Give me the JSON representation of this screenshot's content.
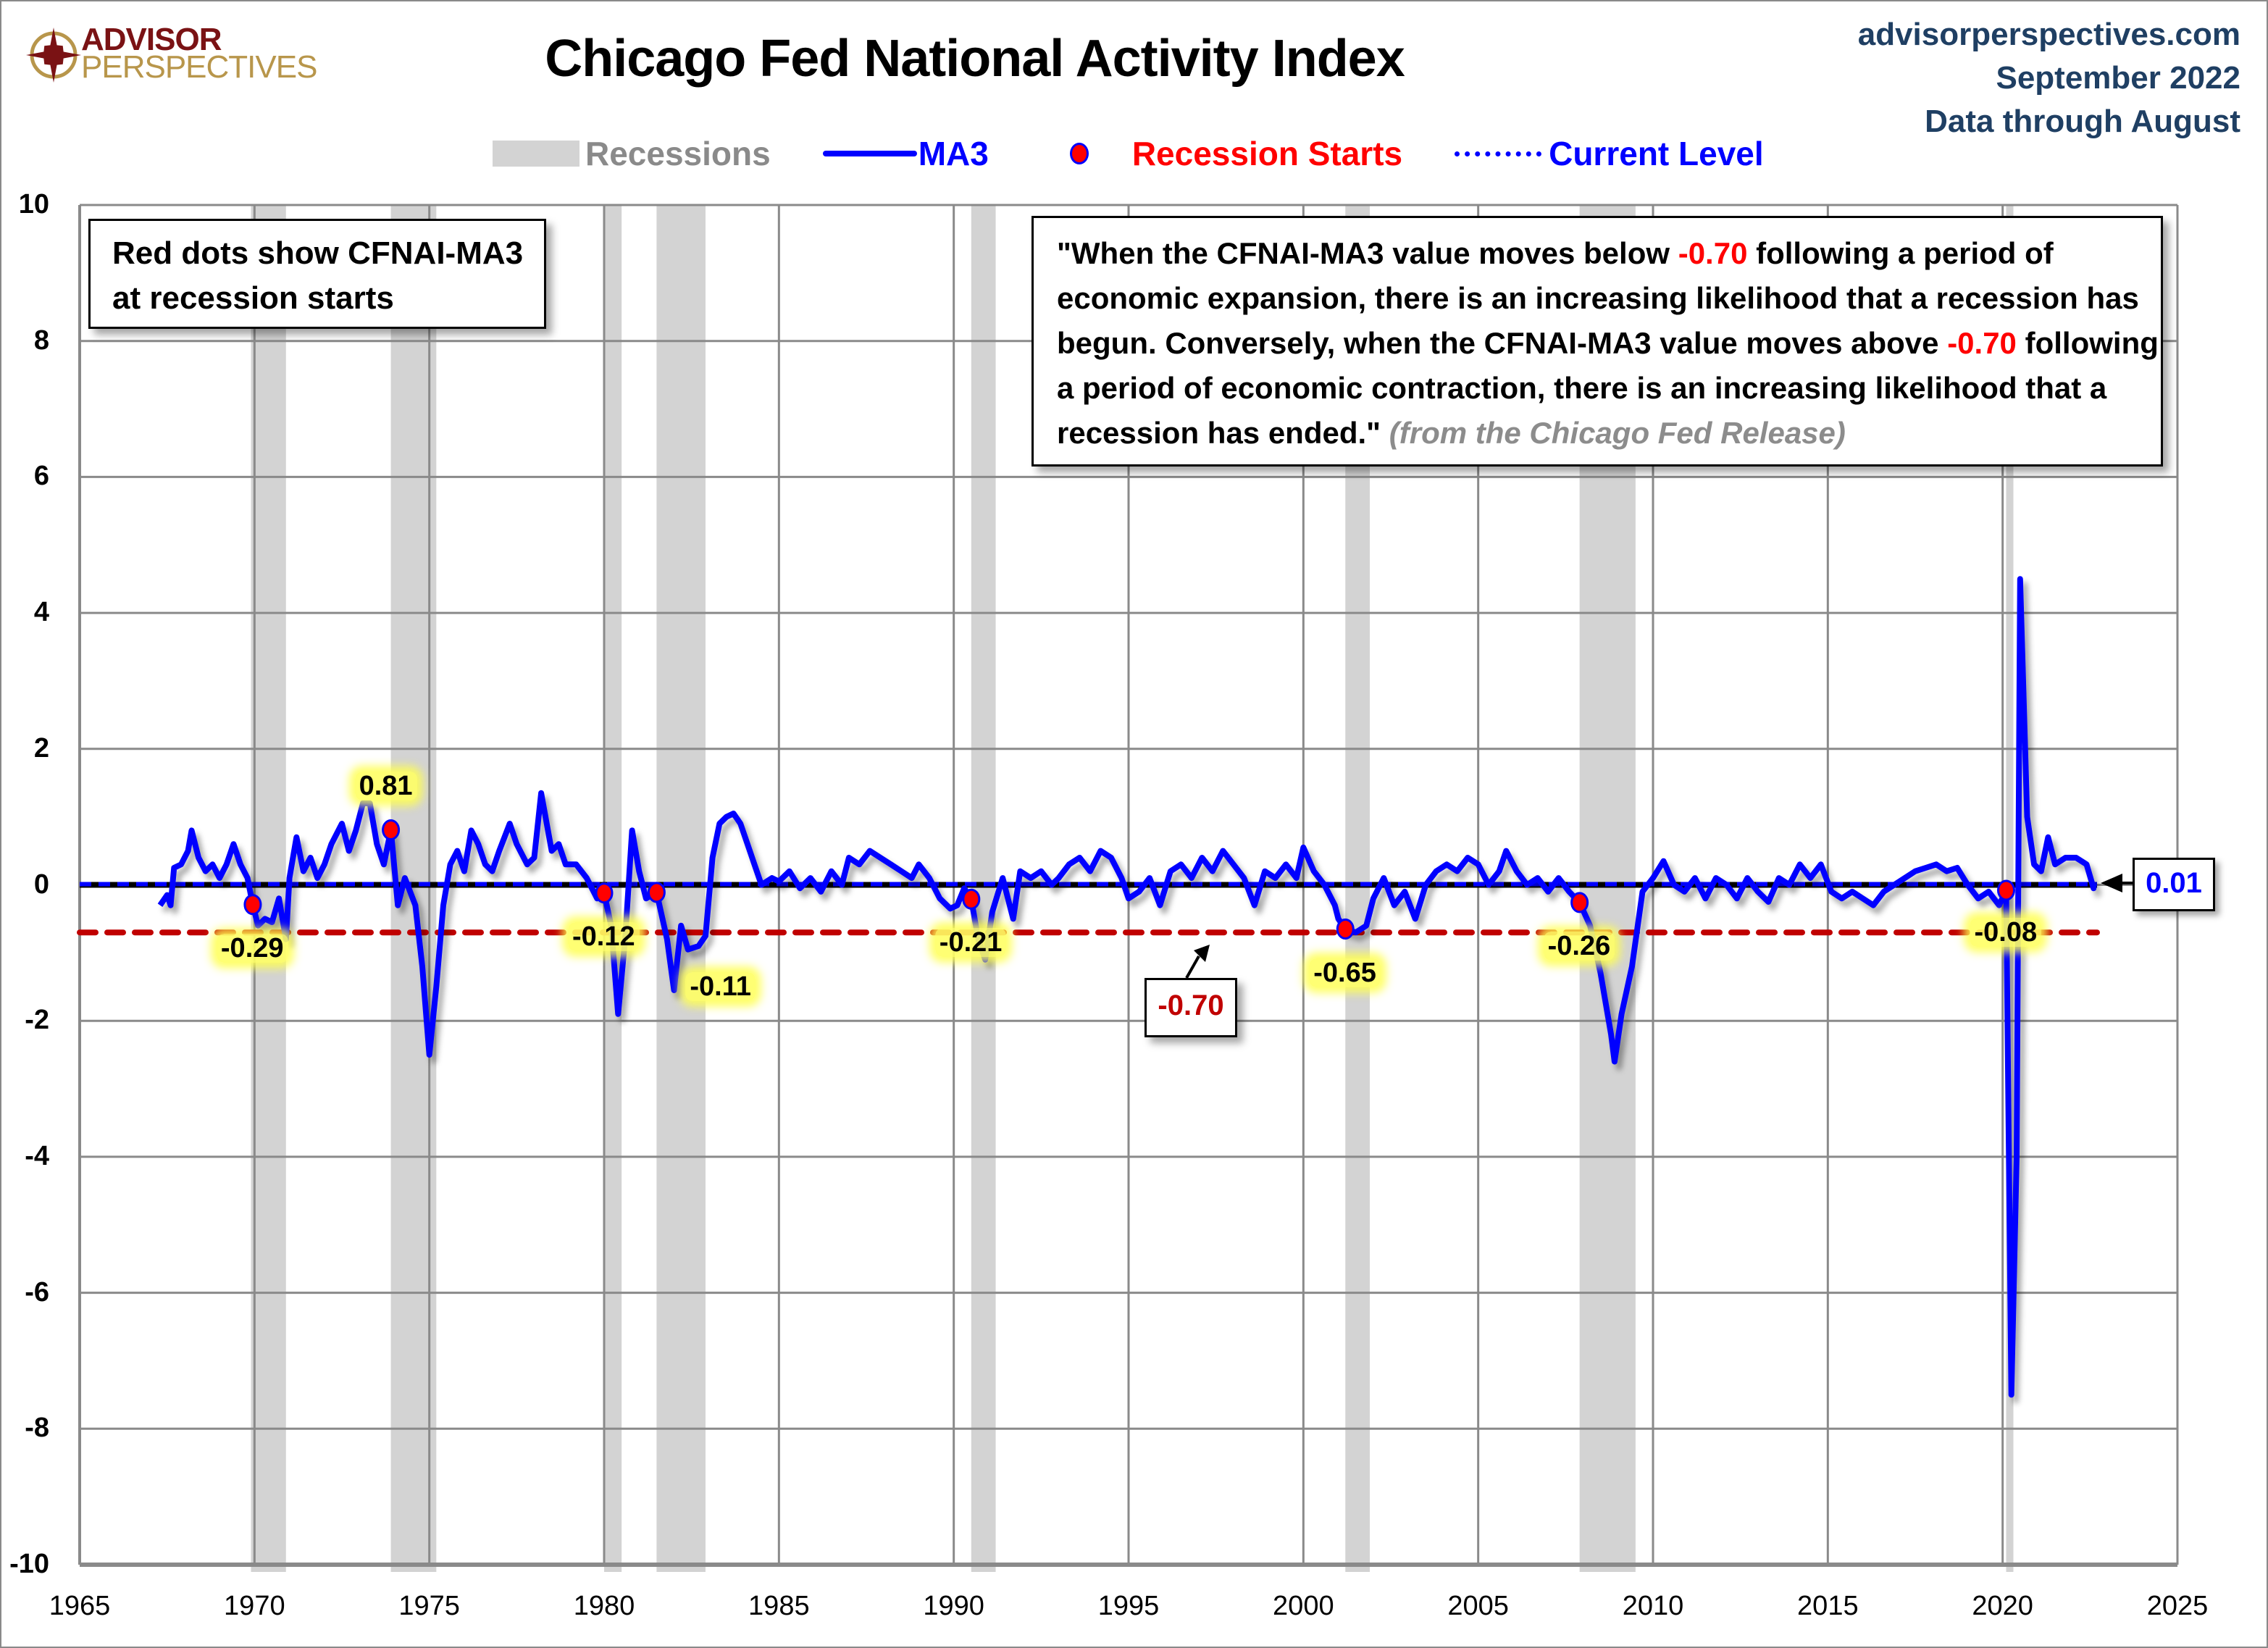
{
  "brand": {
    "logo_top": "ADVISOR",
    "logo_bottom": "PERSPECTIVES",
    "site": "advisorperspectives.com",
    "date": "September 2022",
    "data_note": "Data through August"
  },
  "legend": {
    "recessions": "Recessions",
    "ma3": "MA3",
    "recession_starts": "Recession Starts",
    "current_level": "Current Level"
  },
  "annotations": {
    "left_box_line1": "Red dots show CFNAI-MA3",
    "left_box_line2": "at recession starts",
    "quote_part1": "\"When the CFNAI-MA3 value moves below ",
    "quote_threshold1": "-0.70",
    "quote_part2": " following a period of economic expansion, there is an increasing likelihood that a recession has begun. Conversely, when the CFNAI-MA3 value moves above ",
    "quote_threshold2": "-0.70",
    "quote_part3": " following a period of economic contraction, there is an increasing likelihood that a recession has ended.\" ",
    "quote_source": "(from the Chicago Fed Release)",
    "threshold_box": "-0.70",
    "current_box": "0.01"
  },
  "colors": {
    "ma3": "#0000ff",
    "recession_dot": "#ff0000",
    "threshold_line": "#c00000",
    "recession_band": "#d3d3d3",
    "current_level": "#0000ff",
    "title_text": "#000000",
    "header_text": "#1f3f63"
  },
  "chart_data": {
    "type": "line",
    "title": "Chicago Fed National Activity Index",
    "xlabel": "",
    "ylabel": "",
    "xlim": [
      1965,
      2025
    ],
    "ylim": [
      -10,
      10
    ],
    "x_ticks": [
      "1965",
      "1970",
      "1975",
      "1980",
      "1985",
      "1990",
      "1995",
      "2000",
      "2005",
      "2010",
      "2015",
      "2020",
      "2025"
    ],
    "y_ticks": [
      "10",
      "8",
      "6",
      "4",
      "2",
      "0",
      "-2",
      "-4",
      "-6",
      "-8",
      "-10"
    ],
    "grid": true,
    "legend_position": "top-center",
    "recessions": [
      [
        1969.9,
        1970.9
      ],
      [
        1973.9,
        1975.2
      ],
      [
        1980.0,
        1980.5
      ],
      [
        1981.5,
        1982.9
      ],
      [
        1990.5,
        1991.2
      ],
      [
        2001.2,
        2001.9
      ],
      [
        2007.9,
        2009.5
      ],
      [
        2020.1,
        2020.3
      ]
    ],
    "threshold": {
      "value": -0.7,
      "label": "-0.70"
    },
    "current_level": {
      "value": 0.01,
      "label": "0.01"
    },
    "recession_starts": [
      {
        "x": 1969.95,
        "y": -0.29,
        "label": "-0.29"
      },
      {
        "x": 1973.9,
        "y": 0.81,
        "label": "0.81"
      },
      {
        "x": 1980.0,
        "y": -0.12,
        "label": "-0.12"
      },
      {
        "x": 1981.5,
        "y": -0.11,
        "label": "-0.11"
      },
      {
        "x": 1990.5,
        "y": -0.21,
        "label": "-0.21"
      },
      {
        "x": 2001.2,
        "y": -0.65,
        "label": "-0.65"
      },
      {
        "x": 2007.9,
        "y": -0.26,
        "label": "-0.26"
      },
      {
        "x": 2020.1,
        "y": -0.08,
        "label": "-0.08"
      }
    ],
    "series": [
      {
        "name": "MA3",
        "points": [
          [
            1967.3,
            -0.3
          ],
          [
            1967.5,
            -0.15
          ],
          [
            1967.6,
            -0.3
          ],
          [
            1967.7,
            0.25
          ],
          [
            1967.9,
            0.3
          ],
          [
            1968.1,
            0.5
          ],
          [
            1968.2,
            0.8
          ],
          [
            1968.4,
            0.4
          ],
          [
            1968.6,
            0.2
          ],
          [
            1968.8,
            0.3
          ],
          [
            1969.0,
            0.1
          ],
          [
            1969.2,
            0.3
          ],
          [
            1969.4,
            0.6
          ],
          [
            1969.6,
            0.3
          ],
          [
            1969.8,
            0.1
          ],
          [
            1969.95,
            -0.29
          ],
          [
            1970.1,
            -0.6
          ],
          [
            1970.3,
            -0.5
          ],
          [
            1970.5,
            -0.55
          ],
          [
            1970.7,
            -0.2
          ],
          [
            1970.9,
            -0.8
          ],
          [
            1971.0,
            0.1
          ],
          [
            1971.2,
            0.7
          ],
          [
            1971.4,
            0.2
          ],
          [
            1971.6,
            0.4
          ],
          [
            1971.8,
            0.1
          ],
          [
            1972.0,
            0.3
          ],
          [
            1972.2,
            0.6
          ],
          [
            1972.5,
            0.9
          ],
          [
            1972.7,
            0.5
          ],
          [
            1972.9,
            0.8
          ],
          [
            1973.1,
            1.2
          ],
          [
            1973.3,
            1.2
          ],
          [
            1973.5,
            0.6
          ],
          [
            1973.7,
            0.3
          ],
          [
            1973.9,
            0.81
          ],
          [
            1974.1,
            -0.3
          ],
          [
            1974.3,
            0.1
          ],
          [
            1974.6,
            -0.3
          ],
          [
            1974.8,
            -1.2
          ],
          [
            1975.0,
            -2.5
          ],
          [
            1975.2,
            -1.5
          ],
          [
            1975.4,
            -0.3
          ],
          [
            1975.6,
            0.3
          ],
          [
            1975.8,
            0.5
          ],
          [
            1976.0,
            0.2
          ],
          [
            1976.2,
            0.8
          ],
          [
            1976.4,
            0.6
          ],
          [
            1976.6,
            0.3
          ],
          [
            1976.8,
            0.2
          ],
          [
            1977.0,
            0.5
          ],
          [
            1977.3,
            0.9
          ],
          [
            1977.5,
            0.6
          ],
          [
            1977.8,
            0.3
          ],
          [
            1978.0,
            0.4
          ],
          [
            1978.2,
            1.35
          ],
          [
            1978.5,
            0.5
          ],
          [
            1978.7,
            0.6
          ],
          [
            1978.9,
            0.3
          ],
          [
            1979.2,
            0.3
          ],
          [
            1979.5,
            0.1
          ],
          [
            1979.8,
            -0.2
          ],
          [
            1980.0,
            -0.12
          ],
          [
            1980.2,
            -0.6
          ],
          [
            1980.4,
            -1.9
          ],
          [
            1980.6,
            -0.8
          ],
          [
            1980.8,
            0.8
          ],
          [
            1981.0,
            0.2
          ],
          [
            1981.2,
            -0.2
          ],
          [
            1981.5,
            -0.11
          ],
          [
            1981.8,
            -0.8
          ],
          [
            1982.0,
            -1.55
          ],
          [
            1982.2,
            -0.6
          ],
          [
            1982.4,
            -0.95
          ],
          [
            1982.7,
            -0.9
          ],
          [
            1982.9,
            -0.75
          ],
          [
            1983.1,
            0.4
          ],
          [
            1983.3,
            0.9
          ],
          [
            1983.5,
            1.0
          ],
          [
            1983.7,
            1.05
          ],
          [
            1983.9,
            0.9
          ],
          [
            1984.1,
            0.6
          ],
          [
            1984.3,
            0.3
          ],
          [
            1984.5,
            0.0
          ],
          [
            1984.8,
            0.1
          ],
          [
            1985.0,
            0.05
          ],
          [
            1985.3,
            0.2
          ],
          [
            1985.6,
            -0.05
          ],
          [
            1985.9,
            0.1
          ],
          [
            1986.2,
            -0.1
          ],
          [
            1986.5,
            0.2
          ],
          [
            1986.8,
            0.0
          ],
          [
            1987.0,
            0.4
          ],
          [
            1987.3,
            0.3
          ],
          [
            1987.6,
            0.5
          ],
          [
            1987.9,
            0.4
          ],
          [
            1988.2,
            0.3
          ],
          [
            1988.5,
            0.2
          ],
          [
            1988.8,
            0.1
          ],
          [
            1989.0,
            0.3
          ],
          [
            1989.3,
            0.1
          ],
          [
            1989.6,
            -0.2
          ],
          [
            1989.9,
            -0.35
          ],
          [
            1990.1,
            -0.3
          ],
          [
            1990.3,
            -0.05
          ],
          [
            1990.5,
            -0.21
          ],
          [
            1990.7,
            -0.8
          ],
          [
            1990.9,
            -1.1
          ],
          [
            1991.1,
            -0.4
          ],
          [
            1991.4,
            0.1
          ],
          [
            1991.7,
            -0.5
          ],
          [
            1991.9,
            0.2
          ],
          [
            1992.2,
            0.1
          ],
          [
            1992.5,
            0.2
          ],
          [
            1992.8,
            0.0
          ],
          [
            1993.0,
            0.1
          ],
          [
            1993.3,
            0.3
          ],
          [
            1993.6,
            0.4
          ],
          [
            1993.9,
            0.2
          ],
          [
            1994.2,
            0.5
          ],
          [
            1994.5,
            0.4
          ],
          [
            1994.8,
            0.1
          ],
          [
            1995.0,
            -0.2
          ],
          [
            1995.3,
            -0.1
          ],
          [
            1995.6,
            0.1
          ],
          [
            1995.9,
            -0.3
          ],
          [
            1996.2,
            0.2
          ],
          [
            1996.5,
            0.3
          ],
          [
            1996.8,
            0.1
          ],
          [
            1997.1,
            0.4
          ],
          [
            1997.4,
            0.2
          ],
          [
            1997.7,
            0.5
          ],
          [
            1998.0,
            0.3
          ],
          [
            1998.3,
            0.1
          ],
          [
            1998.6,
            -0.3
          ],
          [
            1998.9,
            0.2
          ],
          [
            1999.2,
            0.1
          ],
          [
            1999.5,
            0.3
          ],
          [
            1999.8,
            0.1
          ],
          [
            2000.0,
            0.55
          ],
          [
            2000.3,
            0.2
          ],
          [
            2000.6,
            0.0
          ],
          [
            2000.9,
            -0.3
          ],
          [
            2001.0,
            -0.5
          ],
          [
            2001.2,
            -0.65
          ],
          [
            2001.5,
            -0.7
          ],
          [
            2001.8,
            -0.6
          ],
          [
            2002.0,
            -0.2
          ],
          [
            2002.3,
            0.1
          ],
          [
            2002.6,
            -0.3
          ],
          [
            2002.9,
            -0.1
          ],
          [
            2003.2,
            -0.5
          ],
          [
            2003.5,
            0.0
          ],
          [
            2003.8,
            0.2
          ],
          [
            2004.1,
            0.3
          ],
          [
            2004.4,
            0.2
          ],
          [
            2004.7,
            0.4
          ],
          [
            2005.0,
            0.3
          ],
          [
            2005.3,
            0.0
          ],
          [
            2005.6,
            0.2
          ],
          [
            2005.8,
            0.5
          ],
          [
            2006.1,
            0.2
          ],
          [
            2006.4,
            0.0
          ],
          [
            2006.7,
            0.1
          ],
          [
            2007.0,
            -0.1
          ],
          [
            2007.3,
            0.1
          ],
          [
            2007.6,
            -0.1
          ],
          [
            2007.9,
            -0.26
          ],
          [
            2008.2,
            -0.6
          ],
          [
            2008.5,
            -1.3
          ],
          [
            2008.8,
            -2.2
          ],
          [
            2008.9,
            -2.6
          ],
          [
            2009.1,
            -1.9
          ],
          [
            2009.4,
            -1.2
          ],
          [
            2009.7,
            -0.1
          ],
          [
            2010.0,
            0.1
          ],
          [
            2010.3,
            0.35
          ],
          [
            2010.6,
            0.0
          ],
          [
            2010.9,
            -0.1
          ],
          [
            2011.2,
            0.1
          ],
          [
            2011.5,
            -0.2
          ],
          [
            2011.8,
            0.1
          ],
          [
            2012.1,
            0.0
          ],
          [
            2012.4,
            -0.2
          ],
          [
            2012.7,
            0.1
          ],
          [
            2013.0,
            -0.1
          ],
          [
            2013.3,
            -0.25
          ],
          [
            2013.6,
            0.1
          ],
          [
            2013.9,
            0.0
          ],
          [
            2014.2,
            0.3
          ],
          [
            2014.5,
            0.1
          ],
          [
            2014.8,
            0.3
          ],
          [
            2015.1,
            -0.1
          ],
          [
            2015.4,
            -0.2
          ],
          [
            2015.7,
            -0.1
          ],
          [
            2016.0,
            -0.2
          ],
          [
            2016.3,
            -0.3
          ],
          [
            2016.6,
            -0.1
          ],
          [
            2016.9,
            0.0
          ],
          [
            2017.2,
            0.1
          ],
          [
            2017.5,
            0.2
          ],
          [
            2017.8,
            0.25
          ],
          [
            2018.1,
            0.3
          ],
          [
            2018.4,
            0.2
          ],
          [
            2018.7,
            0.25
          ],
          [
            2019.0,
            0.0
          ],
          [
            2019.3,
            -0.2
          ],
          [
            2019.6,
            -0.1
          ],
          [
            2019.9,
            -0.3
          ],
          [
            2020.1,
            -0.08
          ],
          [
            2020.25,
            -7.5
          ],
          [
            2020.4,
            -4.0
          ],
          [
            2020.5,
            4.5
          ],
          [
            2020.7,
            1.0
          ],
          [
            2020.9,
            0.3
          ],
          [
            2021.1,
            0.2
          ],
          [
            2021.3,
            0.7
          ],
          [
            2021.5,
            0.3
          ],
          [
            2021.8,
            0.4
          ],
          [
            2022.1,
            0.4
          ],
          [
            2022.4,
            0.3
          ],
          [
            2022.6,
            -0.05
          ],
          [
            2022.6,
            0.01
          ]
        ]
      }
    ]
  }
}
